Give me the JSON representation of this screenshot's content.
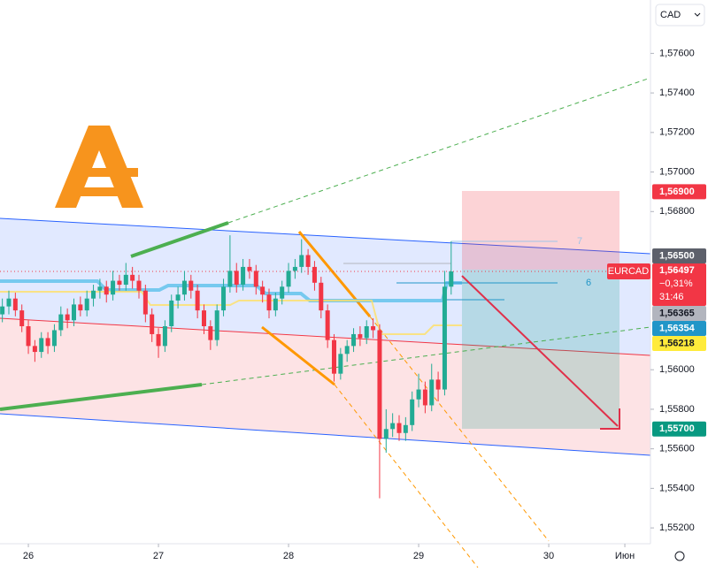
{
  "chart_data": {
    "type": "candlestick",
    "up_color": "#22ab94",
    "down_color": "#f23645",
    "x": [
      25.8,
      25.85,
      25.9,
      25.95,
      26.0,
      26.05,
      26.1,
      26.15,
      26.2,
      26.25,
      26.3,
      26.35,
      26.4,
      26.45,
      26.5,
      26.55,
      26.6,
      26.65,
      26.7,
      26.75,
      26.8,
      26.85,
      26.9,
      26.95,
      27.0,
      27.05,
      27.1,
      27.15,
      27.2,
      27.25,
      27.3,
      27.35,
      27.4,
      27.45,
      27.5,
      27.55,
      27.6,
      27.65,
      27.7,
      27.75,
      27.8,
      27.85,
      27.9,
      27.95,
      28.0,
      28.05,
      28.1,
      28.15,
      28.2,
      28.25,
      28.3,
      28.35,
      28.4,
      28.45,
      28.5,
      28.55,
      28.6,
      28.65,
      28.7,
      28.75,
      28.8,
      28.85,
      28.9,
      28.95,
      29.0,
      29.05,
      29.1,
      29.15,
      29.2,
      29.25
    ],
    "open": [
      1.5628,
      1.5632,
      1.5636,
      1.563,
      1.5622,
      1.5612,
      1.5609,
      1.5616,
      1.5612,
      1.562,
      1.5628,
      1.5625,
      1.5633,
      1.563,
      1.5636,
      1.564,
      1.5642,
      1.5638,
      1.5645,
      1.5643,
      1.5648,
      1.5645,
      1.564,
      1.5628,
      1.5618,
      1.5612,
      1.5622,
      1.5635,
      1.5638,
      1.5645,
      1.564,
      1.563,
      1.5622,
      1.5615,
      1.563,
      1.5642,
      1.565,
      1.5643,
      1.5652,
      1.565,
      1.5642,
      1.5638,
      1.563,
      1.5636,
      1.5642,
      1.565,
      1.5652,
      1.5658,
      1.5652,
      1.5644,
      1.563,
      1.5615,
      1.5598,
      1.5608,
      1.5612,
      1.5618,
      1.5616,
      1.5622,
      1.562,
      1.5565,
      1.557,
      1.5573,
      1.5568,
      1.5572,
      1.5585,
      1.559,
      1.5582,
      1.5595,
      1.559,
      1.5642
    ],
    "high": [
      1.5636,
      1.564,
      1.5639,
      1.5633,
      1.5625,
      1.5615,
      1.5619,
      1.5619,
      1.5623,
      1.5632,
      1.5631,
      1.5636,
      1.5637,
      1.564,
      1.5643,
      1.5646,
      1.5645,
      1.565,
      1.5648,
      1.5654,
      1.5652,
      1.5648,
      1.5643,
      1.5631,
      1.5621,
      1.5625,
      1.5638,
      1.5642,
      1.565,
      1.5648,
      1.5643,
      1.5633,
      1.5625,
      1.5633,
      1.5646,
      1.5668,
      1.5654,
      1.5656,
      1.5656,
      1.5653,
      1.5645,
      1.5641,
      1.5639,
      1.5645,
      1.5654,
      1.5656,
      1.5666,
      1.5661,
      1.5655,
      1.5647,
      1.5633,
      1.5618,
      1.5611,
      1.5615,
      1.5621,
      1.5622,
      1.5625,
      1.5626,
      1.5623,
      1.558,
      1.5578,
      1.5577,
      1.5576,
      1.5589,
      1.5598,
      1.5594,
      1.5603,
      1.5599,
      1.565,
      1.5665
    ],
    "low": [
      1.5624,
      1.5628,
      1.5627,
      1.5619,
      1.5608,
      1.5604,
      1.5606,
      1.5608,
      1.5609,
      1.5617,
      1.5621,
      1.5622,
      1.5627,
      1.5627,
      1.5632,
      1.5636,
      1.5634,
      1.5635,
      1.564,
      1.564,
      1.5641,
      1.5636,
      1.5624,
      1.5614,
      1.5606,
      1.5609,
      1.5619,
      1.5631,
      1.5635,
      1.5636,
      1.5626,
      1.5618,
      1.561,
      1.5612,
      1.5627,
      1.5639,
      1.5639,
      1.564,
      1.5646,
      1.5638,
      1.5634,
      1.5626,
      1.5627,
      1.5633,
      1.5639,
      1.5646,
      1.5649,
      1.5648,
      1.564,
      1.5626,
      1.5611,
      1.5594,
      1.5595,
      1.5604,
      1.5609,
      1.5612,
      1.5613,
      1.5616,
      1.5535,
      1.5558,
      1.5566,
      1.5564,
      1.5564,
      1.5569,
      1.5581,
      1.5578,
      1.5579,
      1.5584,
      1.5587,
      1.5638
    ],
    "close": [
      1.5632,
      1.5636,
      1.563,
      1.5622,
      1.5612,
      1.5609,
      1.5616,
      1.5612,
      1.562,
      1.5628,
      1.5625,
      1.5633,
      1.563,
      1.5636,
      1.564,
      1.5642,
      1.5638,
      1.5645,
      1.5643,
      1.5648,
      1.5645,
      1.564,
      1.5628,
      1.5618,
      1.5612,
      1.5622,
      1.5635,
      1.5638,
      1.5645,
      1.564,
      1.563,
      1.5622,
      1.5615,
      1.563,
      1.5642,
      1.565,
      1.5643,
      1.5652,
      1.565,
      1.5642,
      1.5638,
      1.563,
      1.5636,
      1.5642,
      1.565,
      1.5652,
      1.5658,
      1.5652,
      1.5644,
      1.563,
      1.5615,
      1.5598,
      1.5608,
      1.5612,
      1.5618,
      1.5616,
      1.5622,
      1.562,
      1.5565,
      1.557,
      1.5573,
      1.5568,
      1.5572,
      1.5585,
      1.559,
      1.5582,
      1.5595,
      1.559,
      1.5642,
      1.56497
    ],
    "xlim": [
      25.782,
      30.782
    ],
    "xticks": [
      26,
      27,
      28,
      29,
      30,
      {
        "value": 30.585,
        "label": "Июн"
      }
    ],
    "ylim": [
      1.5512,
      1.5787
    ],
    "yticks": [
      {
        "value": 1.552,
        "label": "1,55200"
      },
      {
        "value": 1.554,
        "label": "1,55400"
      },
      {
        "value": 1.556,
        "label": "1,55600"
      },
      {
        "value": 1.558,
        "label": "1,55800"
      },
      {
        "value": 1.56,
        "label": "1,56000"
      },
      {
        "value": 1.568,
        "label": "1,56800"
      },
      {
        "value": 1.57,
        "label": "1,57000"
      },
      {
        "value": 1.572,
        "label": "1,57200"
      },
      {
        "value": 1.574,
        "label": "1,57400"
      },
      {
        "value": 1.576,
        "label": "1,57600"
      }
    ],
    "currency": "CAD",
    "last_price": {
      "symbol": "EURCAD",
      "value": 1.56497,
      "label": "1,56497",
      "change": "−0,31%",
      "countdown": "31:46",
      "color": "#f23645"
    },
    "price_labels": [
      {
        "value": 1.569,
        "label": "1,56900",
        "color": "#f23645"
      },
      {
        "value": 1.565,
        "label": "1,56500",
        "color": "#5d606b"
      },
      {
        "value": 1.56365,
        "label": "1,56365",
        "color": "#b2b5be"
      },
      {
        "value": 1.56354,
        "label": "1,56354",
        "color": "#2196c8"
      },
      {
        "value": 1.56218,
        "label": "1,56218",
        "color": "#ffeb3b"
      },
      {
        "value": 1.557,
        "label": "1,55700",
        "color": "#089981"
      }
    ],
    "markers": [
      "7",
      "6"
    ]
  }
}
